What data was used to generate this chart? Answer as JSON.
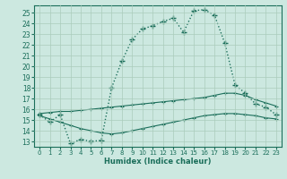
{
  "xlabel": "Humidex (Indice chaleur)",
  "bg_color": "#cce8e0",
  "grid_color": "#aaccbb",
  "line_color": "#1a6e5a",
  "x_ticks": [
    0,
    1,
    2,
    3,
    4,
    5,
    6,
    7,
    8,
    9,
    10,
    11,
    12,
    13,
    14,
    15,
    16,
    17,
    18,
    19,
    20,
    21,
    22,
    23
  ],
  "y_ticks": [
    13,
    14,
    15,
    16,
    17,
    18,
    19,
    20,
    21,
    22,
    23,
    24,
    25
  ],
  "ylim": [
    12.5,
    25.7
  ],
  "xlim": [
    -0.5,
    23.5
  ],
  "series1_x": [
    0,
    1,
    2,
    3,
    4,
    5,
    6,
    7,
    8,
    9,
    10,
    11,
    12,
    13,
    14,
    15,
    16,
    17,
    18,
    19,
    20,
    21,
    22,
    23
  ],
  "series1_y": [
    15.5,
    14.8,
    15.5,
    12.8,
    13.2,
    13.0,
    13.1,
    18.0,
    20.5,
    22.5,
    23.5,
    23.8,
    24.2,
    24.5,
    23.2,
    25.2,
    25.3,
    24.8,
    22.2,
    18.3,
    17.5,
    16.5,
    16.2,
    15.5
  ],
  "series2_x": [
    0,
    1,
    2,
    3,
    4,
    5,
    6,
    7,
    8,
    9,
    10,
    11,
    12,
    13,
    14,
    15,
    16,
    17,
    18,
    19,
    20,
    21,
    22,
    23
  ],
  "series2_y": [
    15.6,
    15.7,
    15.8,
    15.8,
    15.9,
    16.0,
    16.1,
    16.2,
    16.3,
    16.4,
    16.5,
    16.6,
    16.7,
    16.8,
    16.9,
    17.0,
    17.1,
    17.3,
    17.5,
    17.5,
    17.3,
    16.9,
    16.6,
    16.3
  ],
  "series3_x": [
    0,
    1,
    2,
    3,
    4,
    5,
    6,
    7,
    8,
    9,
    10,
    11,
    12,
    13,
    14,
    15,
    16,
    17,
    18,
    19,
    20,
    21,
    22,
    23
  ],
  "series3_y": [
    15.4,
    15.1,
    14.8,
    14.5,
    14.2,
    14.0,
    13.8,
    13.7,
    13.8,
    14.0,
    14.2,
    14.4,
    14.6,
    14.8,
    15.0,
    15.2,
    15.4,
    15.5,
    15.6,
    15.6,
    15.5,
    15.4,
    15.2,
    15.1
  ]
}
